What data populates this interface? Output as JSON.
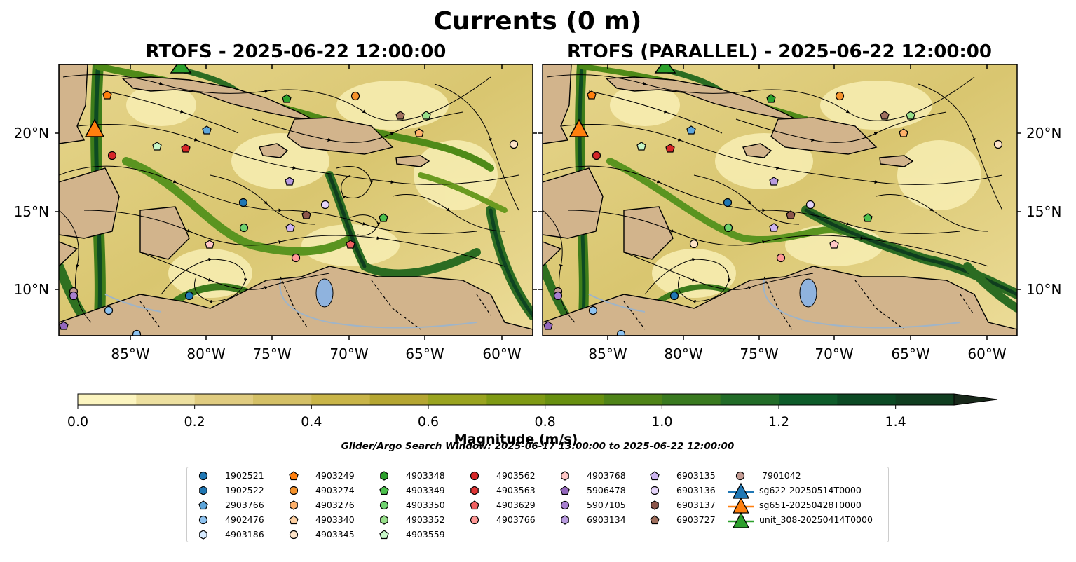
{
  "suptitle": "Currents (0 m)",
  "panels": [
    {
      "title": "RTOFS - 2025-06-22 12:00:00"
    },
    {
      "title": "RTOFS (PARALLEL) - 2025-06-22 12:00:00"
    }
  ],
  "lon_ticks": [
    "85°W",
    "80°W",
    "75°W",
    "70°W",
    "65°W",
    "60°W"
  ],
  "lat_ticks": [
    "20°N",
    "15°N",
    "10°N"
  ],
  "colorbar": {
    "label": "Magnitude (m/s)",
    "ticks": [
      "0.0",
      "0.2",
      "0.4",
      "0.6",
      "0.8",
      "1.0",
      "1.2",
      "1.4"
    ],
    "min": 0,
    "max": 1.5,
    "extend": "max",
    "colors": [
      "#fcf5c0",
      "#ede0a0",
      "#e0cc80",
      "#d4c066",
      "#c9b548",
      "#b5a632",
      "#9aa420",
      "#7f9a14",
      "#689010",
      "#4f8418",
      "#3a7a20",
      "#226c28",
      "#0e5c2a",
      "#0c4a24",
      "#103e20",
      "#16331c",
      "#18281a"
    ]
  },
  "search_window": "Glider/Argo Search Window: 2025-06-17 13:00:00 to 2025-06-22 12:00:00",
  "legend": [
    [
      {
        "label": "1902521",
        "marker": "circle",
        "color": "#1f77b4"
      },
      {
        "label": "1902522",
        "marker": "hexagon",
        "color": "#1f77b4"
      },
      {
        "label": "2903766",
        "marker": "pentagon",
        "color": "#5da5da"
      },
      {
        "label": "4902476",
        "marker": "circle",
        "color": "#8ec3f0"
      },
      {
        "label": "4903186",
        "marker": "hexagon",
        "color": "#d6eaff"
      }
    ],
    [
      {
        "label": "4903249",
        "marker": "pentagon",
        "color": "#ff7f0e"
      },
      {
        "label": "4903274",
        "marker": "circle",
        "color": "#f5922b"
      },
      {
        "label": "4903276",
        "marker": "hexagon",
        "color": "#fdb06a"
      },
      {
        "label": "4903340",
        "marker": "pentagon",
        "color": "#fdd0a2"
      },
      {
        "label": "4903345",
        "marker": "circle",
        "color": "#fde3c8"
      }
    ],
    [
      {
        "label": "4903348",
        "marker": "hexagon",
        "color": "#2ca02c"
      },
      {
        "label": "4903349",
        "marker": "pentagon",
        "color": "#4cc04c"
      },
      {
        "label": "4903350",
        "marker": "circle",
        "color": "#6fd36f"
      },
      {
        "label": "4903352",
        "marker": "hexagon",
        "color": "#98df8a"
      },
      {
        "label": "4903559",
        "marker": "pentagon",
        "color": "#c7f7c7"
      }
    ],
    [
      {
        "label": "4903562",
        "marker": "circle",
        "color": "#d62728"
      },
      {
        "label": "4903563",
        "marker": "hexagon",
        "color": "#e03535"
      },
      {
        "label": "4903629",
        "marker": "pentagon",
        "color": "#f06060"
      },
      {
        "label": "4903766",
        "marker": "circle",
        "color": "#ff9896"
      }
    ],
    [
      {
        "label": "4903768",
        "marker": "hexagon",
        "color": "#ffc7c6"
      },
      {
        "label": "5906478",
        "marker": "pentagon",
        "color": "#9467bd"
      },
      {
        "label": "5907105",
        "marker": "circle",
        "color": "#a77fcf"
      },
      {
        "label": "6903134",
        "marker": "hexagon",
        "color": "#b99be0"
      }
    ],
    [
      {
        "label": "6903135",
        "marker": "pentagon",
        "color": "#cdb4f0"
      },
      {
        "label": "6903136",
        "marker": "circle",
        "color": "#e5d4fa"
      },
      {
        "label": "6903137",
        "marker": "hexagon",
        "color": "#8c564b"
      },
      {
        "label": "6903727",
        "marker": "pentagon",
        "color": "#a0705f"
      }
    ],
    [
      {
        "label": "7901042",
        "marker": "circle",
        "color": "#c49c94"
      },
      {
        "label": "sg622-20250514T0000",
        "marker": "triangle",
        "color": "#1f77b4"
      },
      {
        "label": "sg651-20250428T0000",
        "marker": "triangle",
        "color": "#ff7f0e"
      },
      {
        "label": "unit_308-20250414T0000",
        "marker": "triangle",
        "color": "#2ca02c"
      }
    ]
  ]
}
